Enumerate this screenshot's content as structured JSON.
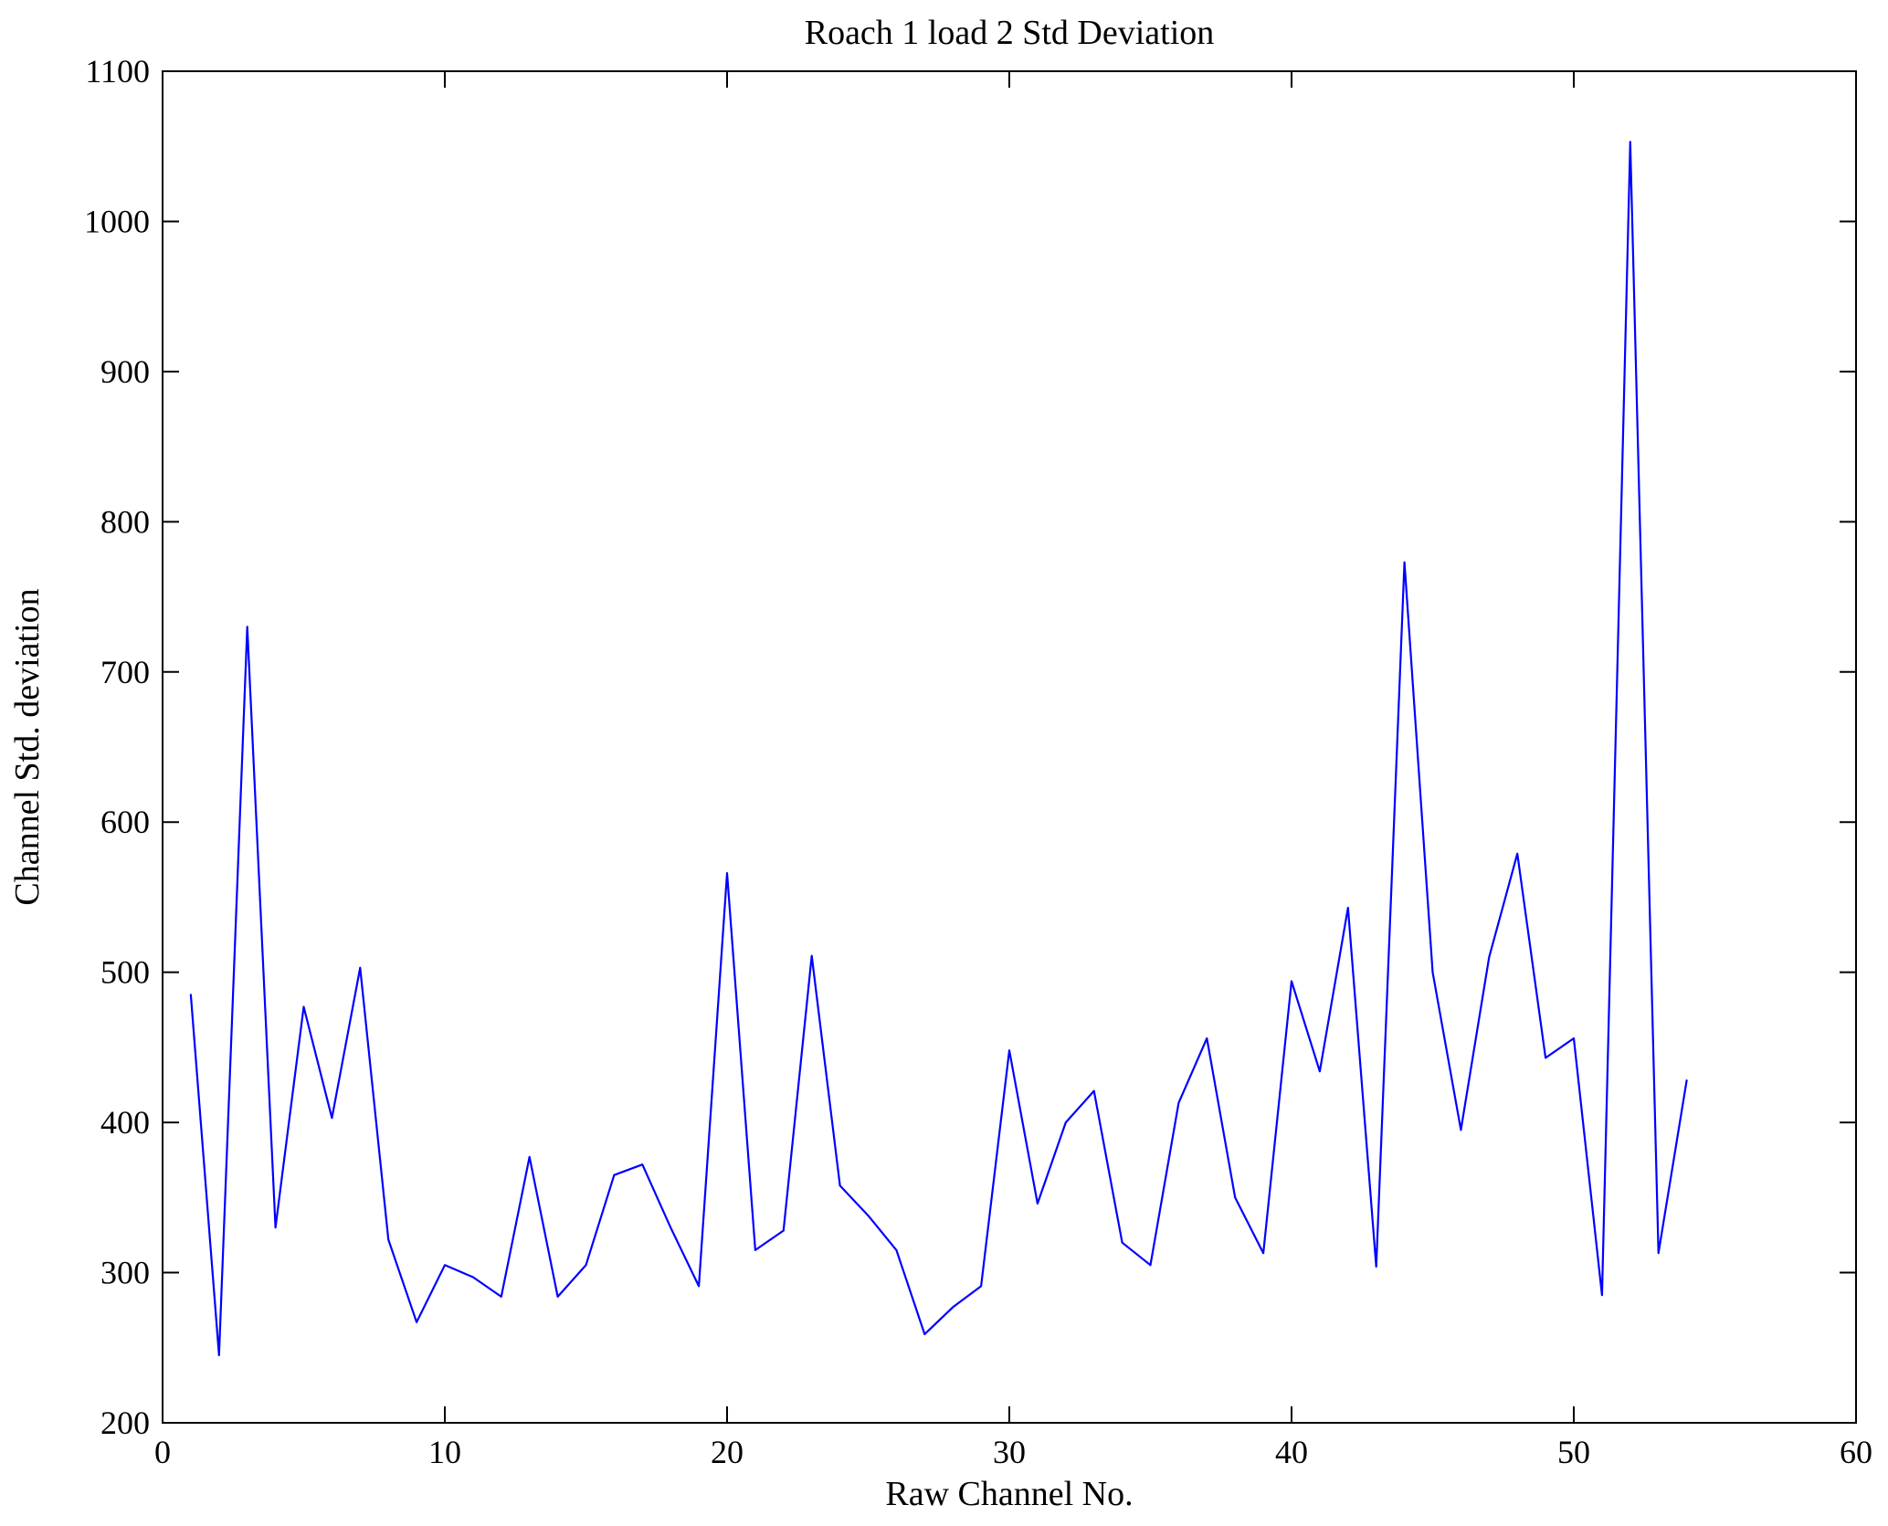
{
  "chart_data": {
    "type": "line",
    "title": "Roach 1 load 2 Std Deviation",
    "xlabel": "Raw Channel No.",
    "ylabel": "Channel Std. deviation",
    "xlim": [
      0,
      60
    ],
    "ylim": [
      200,
      1100
    ],
    "xticks": [
      0,
      10,
      20,
      30,
      40,
      50,
      60
    ],
    "yticks": [
      200,
      300,
      400,
      500,
      600,
      700,
      800,
      900,
      1000,
      1100
    ],
    "line_color": "#0000ff",
    "axis_color": "#000000",
    "grid": false,
    "legend": null,
    "x": [
      1,
      2,
      3,
      4,
      5,
      6,
      7,
      8,
      9,
      10,
      11,
      12,
      13,
      14,
      15,
      16,
      17,
      18,
      19,
      20,
      21,
      22,
      23,
      24,
      25,
      26,
      27,
      28,
      29,
      30,
      31,
      32,
      33,
      34,
      35,
      36,
      37,
      38,
      39,
      40,
      41,
      42,
      43,
      44,
      45,
      46,
      47,
      48,
      49,
      50,
      51,
      52,
      53,
      54
    ],
    "values": [
      485,
      245,
      730,
      330,
      477,
      403,
      503,
      322,
      267,
      305,
      297,
      284,
      377,
      284,
      305,
      365,
      372,
      330,
      291,
      566,
      315,
      328,
      511,
      358,
      338,
      315,
      259,
      277,
      291,
      448,
      346,
      400,
      421,
      320,
      305,
      413,
      456,
      350,
      313,
      494,
      434,
      543,
      304,
      773,
      500,
      395,
      510,
      579,
      443,
      456,
      285,
      1053,
      313,
      428
    ]
  }
}
